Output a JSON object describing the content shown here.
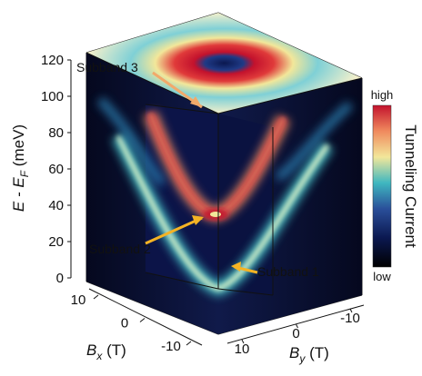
{
  "chart_data": {
    "type": "heatmap",
    "view": "3D cutaway cube of tunneling current versus energy and in-plane magnetic field (Bx, By)",
    "axes": {
      "z": {
        "label_main": "E - E",
        "label_sub": "F",
        "label_unit": " (meV)",
        "ticks": [
          "0",
          "20",
          "40",
          "60",
          "80",
          "100",
          "120"
        ],
        "range": [
          0,
          120
        ]
      },
      "x": {
        "label_main": "B",
        "label_sub": "x",
        "label_unit": " (T)",
        "ticks": [
          "10",
          "0",
          "-10"
        ],
        "range": [
          10,
          -10
        ]
      },
      "y": {
        "label_main": "B",
        "label_sub": "y",
        "label_unit": " (T)",
        "ticks": [
          "10",
          "0",
          "-10"
        ],
        "range": [
          10,
          -10
        ]
      }
    },
    "colorbar": {
      "label": "Tunneling Current",
      "high_label": "high",
      "low_label": "low",
      "colors": [
        "#000000",
        "#0b1850",
        "#2a4f9a",
        "#3fb7c0",
        "#f2e79a",
        "#f08a5e",
        "#c3122d"
      ]
    },
    "annotations": [
      {
        "label": "Subband 3",
        "energy_meV": 95,
        "B_T": 0
      },
      {
        "label": "Subband 2",
        "energy_meV": 34,
        "B_T": 0
      },
      {
        "label": "Subband 1",
        "energy_meV": 2,
        "B_T": 0
      }
    ],
    "bands": [
      {
        "name": "Subband 1",
        "minimum_energy_meV": 2,
        "note": "parabolic dispersion rising toward |B| = 10 T"
      },
      {
        "name": "Subband 2",
        "minimum_energy_meV": 34,
        "note": "strongest current near minimum"
      },
      {
        "name": "Subband 3",
        "minimum_energy_meV": 95,
        "note": "ring of high current on top face"
      }
    ]
  }
}
